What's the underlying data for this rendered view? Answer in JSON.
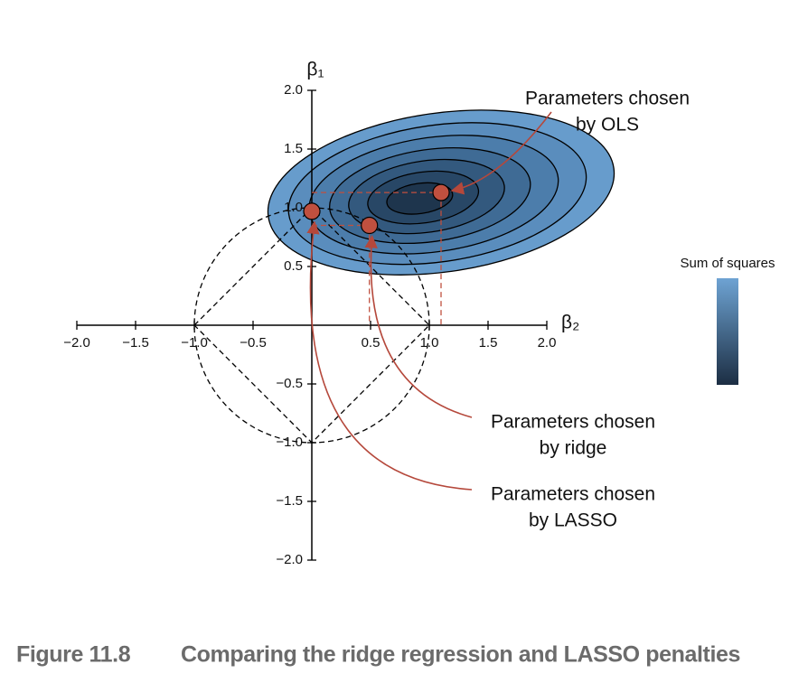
{
  "chart_data": {
    "type": "scatter",
    "x_label": "β₂",
    "y_label": "β₁",
    "xlim": [
      -2,
      2
    ],
    "ylim": [
      -2,
      2
    ],
    "xticks": [
      {
        "value": -2,
        "label": "−2.0"
      },
      {
        "value": -1.5,
        "label": "−1.5"
      },
      {
        "value": -1,
        "label": "−1.0"
      },
      {
        "value": -0.5,
        "label": "−0.5"
      },
      {
        "value": 0.5,
        "label": "0.5"
      },
      {
        "value": 1,
        "label": "1.0"
      },
      {
        "value": 1.5,
        "label": "1.5"
      },
      {
        "value": 2,
        "label": "2.0"
      }
    ],
    "yticks": [
      {
        "value": -2,
        "label": "−2.0"
      },
      {
        "value": -1.5,
        "label": "−1.5"
      },
      {
        "value": -1,
        "label": "−1.0"
      },
      {
        "value": -0.5,
        "label": "−0.5"
      },
      {
        "value": 0.5,
        "label": "0.5"
      },
      {
        "value": 1,
        "label": "1.0"
      },
      {
        "value": 1.5,
        "label": "1.5"
      },
      {
        "value": 2,
        "label": "2.0"
      }
    ],
    "points": [
      {
        "x": 1.1,
        "y": 1.13
      },
      {
        "x": 0.49,
        "y": 0.85
      },
      {
        "x": 0,
        "y": 0.97
      }
    ],
    "point_color": "#c0503f",
    "annotations": [
      {
        "lines": [
          "Parameters chosen",
          "by OLS"
        ]
      },
      {
        "lines": [
          "Parameters chosen",
          "by ridge"
        ]
      },
      {
        "lines": [
          "Parameters chosen",
          "by LASSO"
        ]
      }
    ],
    "colorbar_label": "Sum of squares"
  },
  "caption": {
    "number": "Figure 11.8",
    "text": "Comparing the ridge regression and LASSO penalties"
  }
}
